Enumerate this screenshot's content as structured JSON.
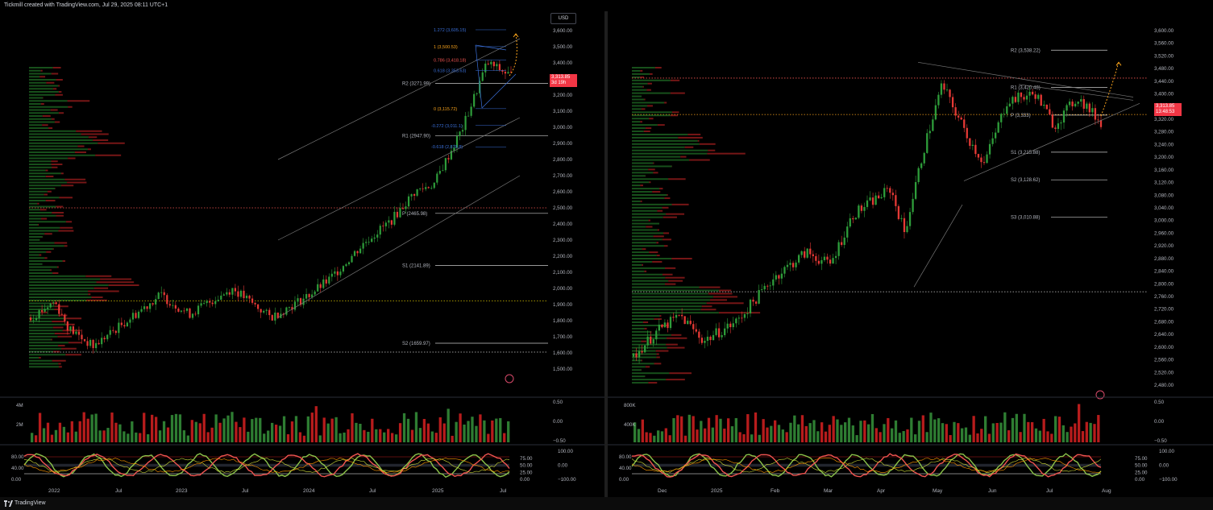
{
  "header": {
    "caption": "Tickmill created with TradingView.com, Jul 29, 2025 08:11 UTC+1"
  },
  "footer": {
    "brand": "TradingView"
  },
  "colors": {
    "up": "#26a69a",
    "down": "#ef5350",
    "bull": "#2e7d32",
    "bear": "#c62828",
    "accent": "#f7a21b",
    "fib": "#3a6fd8"
  },
  "left_chart": {
    "currency_button": "USD",
    "price_axis": [
      "3,600.00",
      "3,500.00",
      "3,400.00",
      "3,300.00",
      "3,200.00",
      "3,100.00",
      "3,000.00",
      "2,900.00",
      "2,800.00",
      "2,700.00",
      "2,600.00",
      "2,500.00",
      "2,400.00",
      "2,300.00",
      "2,200.00",
      "2,100.00",
      "2,000.00",
      "1,900.00",
      "1,800.00",
      "1,700.00",
      "1,600.00",
      "1,500.00"
    ],
    "last_price": "3,313.85",
    "last_price_sub": "3d 19h",
    "pivots": [
      {
        "label": "R2 (3271.99)",
        "price": 3271.99
      },
      {
        "label": "R1 (2947.90)",
        "price": 2947.9
      },
      {
        "label": "P (2465.98)",
        "price": 2465.98
      },
      {
        "label": "S1 (2141.89)",
        "price": 2141.89
      },
      {
        "label": "S2 (1659.97)",
        "price": 1659.97
      }
    ],
    "fibs": [
      {
        "label": "1.272 (3,605.15)",
        "price": 3605.15
      },
      {
        "label": "1 (3,500.53)",
        "price": 3500.53
      },
      {
        "label": "0.786 (3,418.18)",
        "price": 3418.18
      },
      {
        "label": "0.618 (3,353.63)",
        "price": 3353.63
      },
      {
        "label": "0 (3,115.72)",
        "price": 3115.72
      },
      {
        "label": "-0.272 (3,011.1)",
        "price": 3011.1
      },
      {
        "label": "-0.618 (2,878.8)",
        "price": 2878.8
      }
    ],
    "time_axis": [
      "2022",
      "Jul",
      "2023",
      "Jul",
      "2024",
      "Jul",
      "2025",
      "Jul"
    ],
    "volume_axis": [
      "4M",
      "2M"
    ],
    "volume_right_axis": [
      "0.50",
      "0.00",
      "−0.50"
    ],
    "osc_left_axis": [
      "80.00",
      "40.00",
      "0.00"
    ],
    "osc_right_axis": [
      "75.00",
      "50.00",
      "25.00",
      "0.00"
    ],
    "osc_right_axis2": [
      "100.00",
      "0.00",
      "−100.00"
    ]
  },
  "right_chart": {
    "price_axis": [
      "3,600.00",
      "3,560.00",
      "3,520.00",
      "3,480.00",
      "3,440.00",
      "3,400.00",
      "3,360.00",
      "3,320.00",
      "3,280.00",
      "3,240.00",
      "3,200.00",
      "3,160.00",
      "3,120.00",
      "3,080.00",
      "3,040.00",
      "3,000.00",
      "2,960.00",
      "2,920.00",
      "2,880.00",
      "2,840.00",
      "2,800.00",
      "2,760.00",
      "2,720.00",
      "2,680.00",
      "2,640.00",
      "2,600.00",
      "2,560.00",
      "2,520.00",
      "2,480.00"
    ],
    "last_price": "3,313.85",
    "last_price_sub": "13:48:53",
    "pivots": [
      {
        "label": "R2 (3,538.22)",
        "price": 3538.22
      },
      {
        "label": "R1 (3,420.48)",
        "price": 3420.48
      },
      {
        "label": "P (3,333)",
        "price": 3333
      },
      {
        "label": "S1 (3,215.88)",
        "price": 3215.88
      },
      {
        "label": "S2 (3,128.62)",
        "price": 3128.62
      },
      {
        "label": "S3 (3,010.88)",
        "price": 3010.88
      }
    ],
    "time_axis": [
      "Dec",
      "2025",
      "Feb",
      "Mar",
      "Apr",
      "May",
      "Jun",
      "Jul",
      "Aug"
    ],
    "volume_axis": [
      "800K",
      "400K"
    ],
    "volume_right_axis": [
      "0.50",
      "0.00",
      "−0.50"
    ],
    "osc_left_axis": [
      "80.00",
      "40.00",
      "0.00"
    ],
    "osc_right_axis": [
      "75.00",
      "50.00",
      "25.00",
      "0.00"
    ],
    "osc_right_axis2": [
      "100.00",
      "0.00",
      "−100.00"
    ]
  }
}
